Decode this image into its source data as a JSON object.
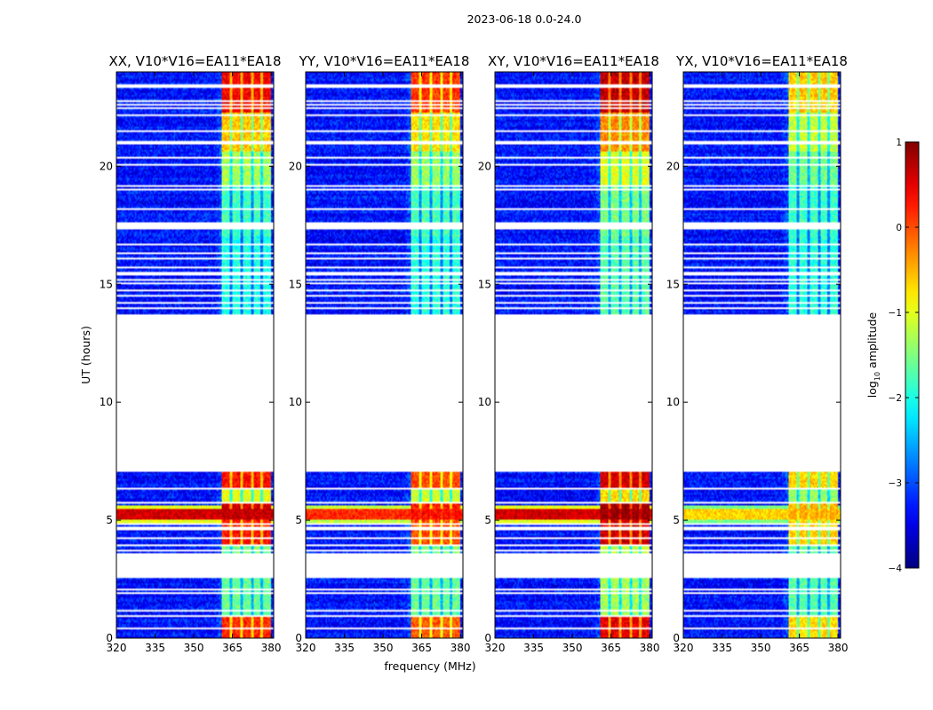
{
  "figure": {
    "suptitle": "2023-06-18 0.0-24.0",
    "xlabel": "frequency (MHz)",
    "ylabel": "UT (hours)"
  },
  "chart_data": {
    "type": "heatmap",
    "title": "2023-06-18 0.0-24.0",
    "xlabel": "frequency (MHz)",
    "ylabel": "UT (hours)",
    "xlim": [
      320,
      381
    ],
    "ylim": [
      0,
      24
    ],
    "xticks": [
      320,
      335,
      350,
      365,
      380
    ],
    "yticks": [
      0,
      5,
      10,
      15,
      20
    ],
    "panels": [
      {
        "name": "XX",
        "title": "XX, V10*V16=EA11*EA18",
        "strength": 1.0,
        "band_boost": 0
      },
      {
        "name": "YY",
        "title": "YY, V10*V16=EA11*EA18",
        "strength": 0.85,
        "band_boost": 0
      },
      {
        "name": "XY",
        "title": "XY, V10*V16=EA11*EA18",
        "strength": 1.0,
        "band_boost": 0.3
      },
      {
        "name": "YX",
        "title": "YX, V10*V16=EA11*EA18",
        "strength": 0.55,
        "band_boost": -0.2
      }
    ],
    "colorbar": {
      "label": "log10 amplitude",
      "label_prefix": "log",
      "label_sub": "10",
      "label_suffix": " amplitude",
      "range": [
        -4,
        1
      ],
      "ticks": [
        1,
        0,
        -1,
        -2,
        -3,
        -4
      ],
      "colormap": "jet"
    },
    "data_time_ranges_hours": [
      [
        0,
        2.55
      ],
      [
        3.6,
        7.05
      ],
      [
        13.75,
        24.0
      ]
    ],
    "blank_time_gaps_hours": [
      [
        2.55,
        3.6
      ],
      [
        7.05,
        13.75
      ]
    ],
    "bright_band_MHz": [
      361,
      380
    ],
    "band_subchannels_MHz": [
      [
        361,
        364
      ],
      [
        365,
        368
      ],
      [
        369,
        372
      ],
      [
        373,
        376
      ],
      [
        377,
        380
      ]
    ],
    "notes": "Amplitude rises sharply between 361 and 380 MHz; strongest RFI near 5.0-5.5 h across all frequencies"
  }
}
